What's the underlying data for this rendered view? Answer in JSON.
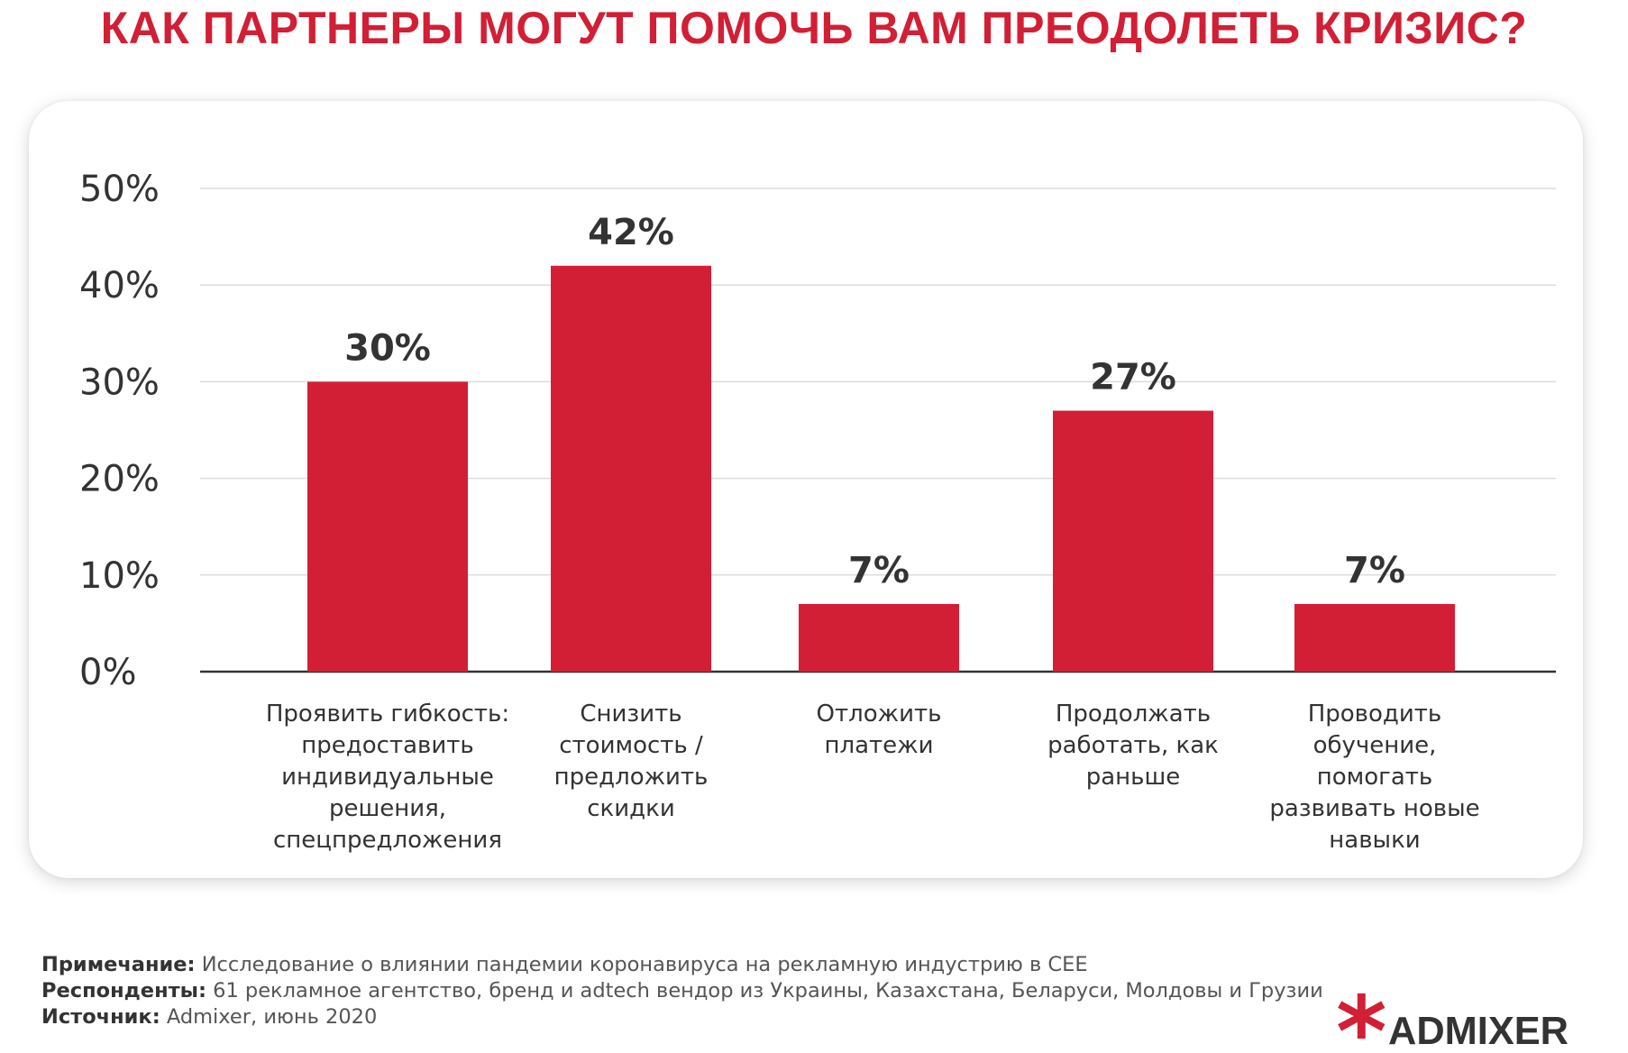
{
  "title": "КАК ПАРТНЕРЫ МОГУТ ПОМОЧЬ ВАМ ПРЕОДОЛЕТЬ КРИЗИС?",
  "chart_data": {
    "type": "bar",
    "categories": [
      [
        "Проявить гибкость:",
        "предоставить",
        "индивидуальные",
        "решения,",
        "спецпредложения"
      ],
      [
        "Снизить",
        "стоимость /",
        "предложить",
        "скидки"
      ],
      [
        "Отложить",
        "платежи"
      ],
      [
        "Продолжать",
        "работать, как",
        "раньше"
      ],
      [
        "Проводить",
        "обучение,",
        "помогать",
        "развивать новые",
        "навыки"
      ]
    ],
    "values": [
      30,
      42,
      7,
      27,
      7
    ],
    "data_labels": [
      "30%",
      "42%",
      "7%",
      "27%",
      "7%"
    ],
    "yticks": [
      "0%",
      "10%",
      "20%",
      "30%",
      "40%",
      "50%"
    ],
    "ytick_values": [
      0,
      10,
      20,
      30,
      40,
      50
    ],
    "ylim": [
      0,
      50
    ],
    "grid": true,
    "bar_color": "#d21f35"
  },
  "notes": {
    "note_label": "Примечание:",
    "note_text": " Исследование о влиянии пандемии коронавируса на рекламную индустрию в CEE",
    "respondents_label": "Респонденты:",
    "respondents_text": " 61 рекламное агентство, бренд и adtech вендор из Украины, Казахстана, Беларуси, Молдовы и Грузии",
    "source_label": "Источник:",
    "source_text": " Admixer, июнь 2020"
  },
  "logo": {
    "text": "ADMIXER",
    "mark": "*"
  },
  "colors": {
    "accent": "#d21f35",
    "text": "#333333",
    "muted": "#555555",
    "grid": "#dcdcdc"
  }
}
